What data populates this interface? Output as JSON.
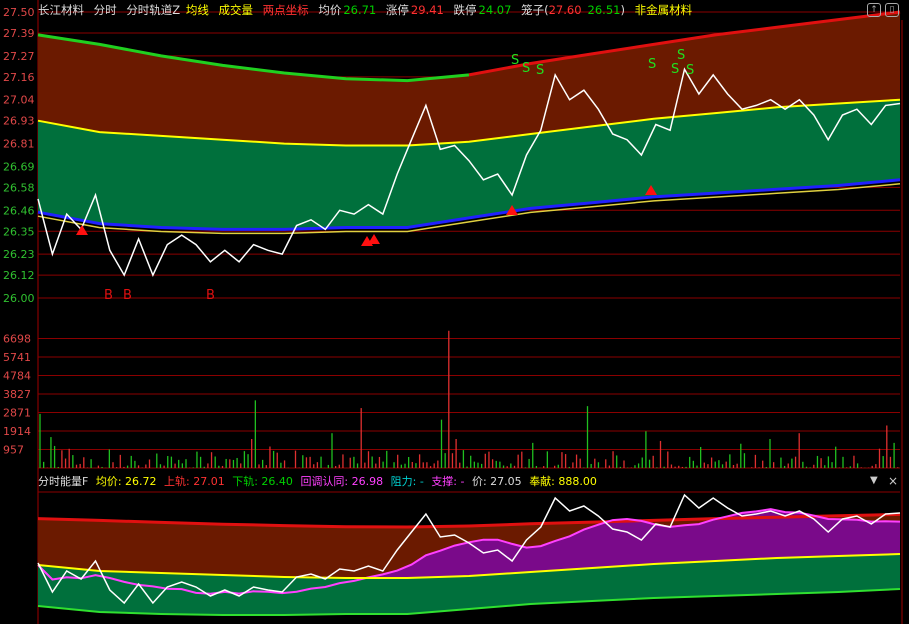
{
  "header": {
    "stock": "长江材料",
    "mode": "分时",
    "indicator": "分时轨道Z",
    "avg_line": "均线",
    "volume": "成交量",
    "two_point": "两点坐标",
    "avg_label": "均价",
    "avg_value": "26.71",
    "limit_up_label": "涨停",
    "limit_up": "29.41",
    "limit_down_label": "跌停",
    "limit_down": "24.07",
    "cage_label": "笼子(",
    "cage_high": "27.60",
    "cage_low": "26.51",
    "sector": "非金属材料",
    "cage_close": ")"
  },
  "lower_header": {
    "name": "分时能量F",
    "avg": "均价: 26.72",
    "upper": "上轨: 27.01",
    "lower": "下轨: 26.40",
    "pullback": "回调认同: 26.98",
    "resistance": "阻力: -",
    "support": "支撑: -",
    "price": "价: 27.05",
    "contrib": "奉献: 888.00"
  },
  "icons": {
    "collapse": "triangle-down-icon",
    "close": "close-icon",
    "restore": "restore-icon",
    "window": "window-icon"
  },
  "colors": {
    "up": "#ff3232",
    "down": "#00d000",
    "avg": "#ffff00",
    "price": "#ffffff",
    "grid": "#8b0000",
    "brown": "#6b1a00",
    "green": "#00703c",
    "purple": "#7a0a8a"
  },
  "chart_data": [
    {
      "type": "line",
      "title": "",
      "y_ticks": [
        "27.50",
        "27.39",
        "27.27",
        "27.16",
        "27.04",
        "26.93",
        "26.81",
        "26.69",
        "26.58",
        "26.46",
        "26.35",
        "26.23",
        "26.12",
        "26.00"
      ],
      "ylim": [
        26.0,
        27.5
      ],
      "price": [
        26.52,
        26.23,
        26.44,
        26.36,
        26.54,
        26.25,
        26.12,
        26.31,
        26.12,
        26.28,
        26.33,
        26.28,
        26.19,
        26.25,
        26.19,
        26.28,
        26.25,
        26.23,
        26.38,
        26.41,
        26.36,
        26.46,
        26.44,
        26.49,
        26.44,
        26.65,
        26.83,
        27.01,
        26.78,
        26.8,
        26.72,
        26.62,
        26.65,
        26.54,
        26.75,
        26.88,
        27.17,
        27.04,
        27.09,
        26.99,
        26.86,
        26.83,
        26.75,
        26.91,
        26.88,
        27.2,
        27.07,
        27.17,
        27.07,
        26.99,
        27.01,
        27.04,
        26.99,
        27.04,
        26.96,
        26.83,
        26.96,
        26.99,
        26.91,
        27.01,
        27.02
      ],
      "band_top": [
        27.38,
        27.33,
        27.27,
        27.22,
        27.18,
        27.15,
        27.14,
        27.17,
        27.23,
        27.28,
        27.33,
        27.38,
        27.42,
        27.46,
        27.5
      ],
      "band_mid": [
        26.93,
        26.87,
        26.85,
        26.83,
        26.81,
        26.8,
        26.8,
        26.82,
        26.86,
        26.9,
        26.94,
        26.97,
        27.0,
        27.02,
        27.04
      ],
      "band_low": [
        26.45,
        26.39,
        26.37,
        26.36,
        26.36,
        26.37,
        26.37,
        26.42,
        26.47,
        26.5,
        26.53,
        26.55,
        26.57,
        26.59,
        26.62
      ],
      "buy_marks": [
        "B",
        "B",
        "B"
      ],
      "sell_marks": [
        "S",
        "S",
        "S",
        "S",
        "S",
        "S",
        "S"
      ]
    },
    {
      "type": "bar",
      "title": "",
      "y_ticks": [
        "6698",
        "5741",
        "4784",
        "3827",
        "2871",
        "1914",
        "957"
      ],
      "ylim": [
        0,
        7200
      ]
    }
  ]
}
